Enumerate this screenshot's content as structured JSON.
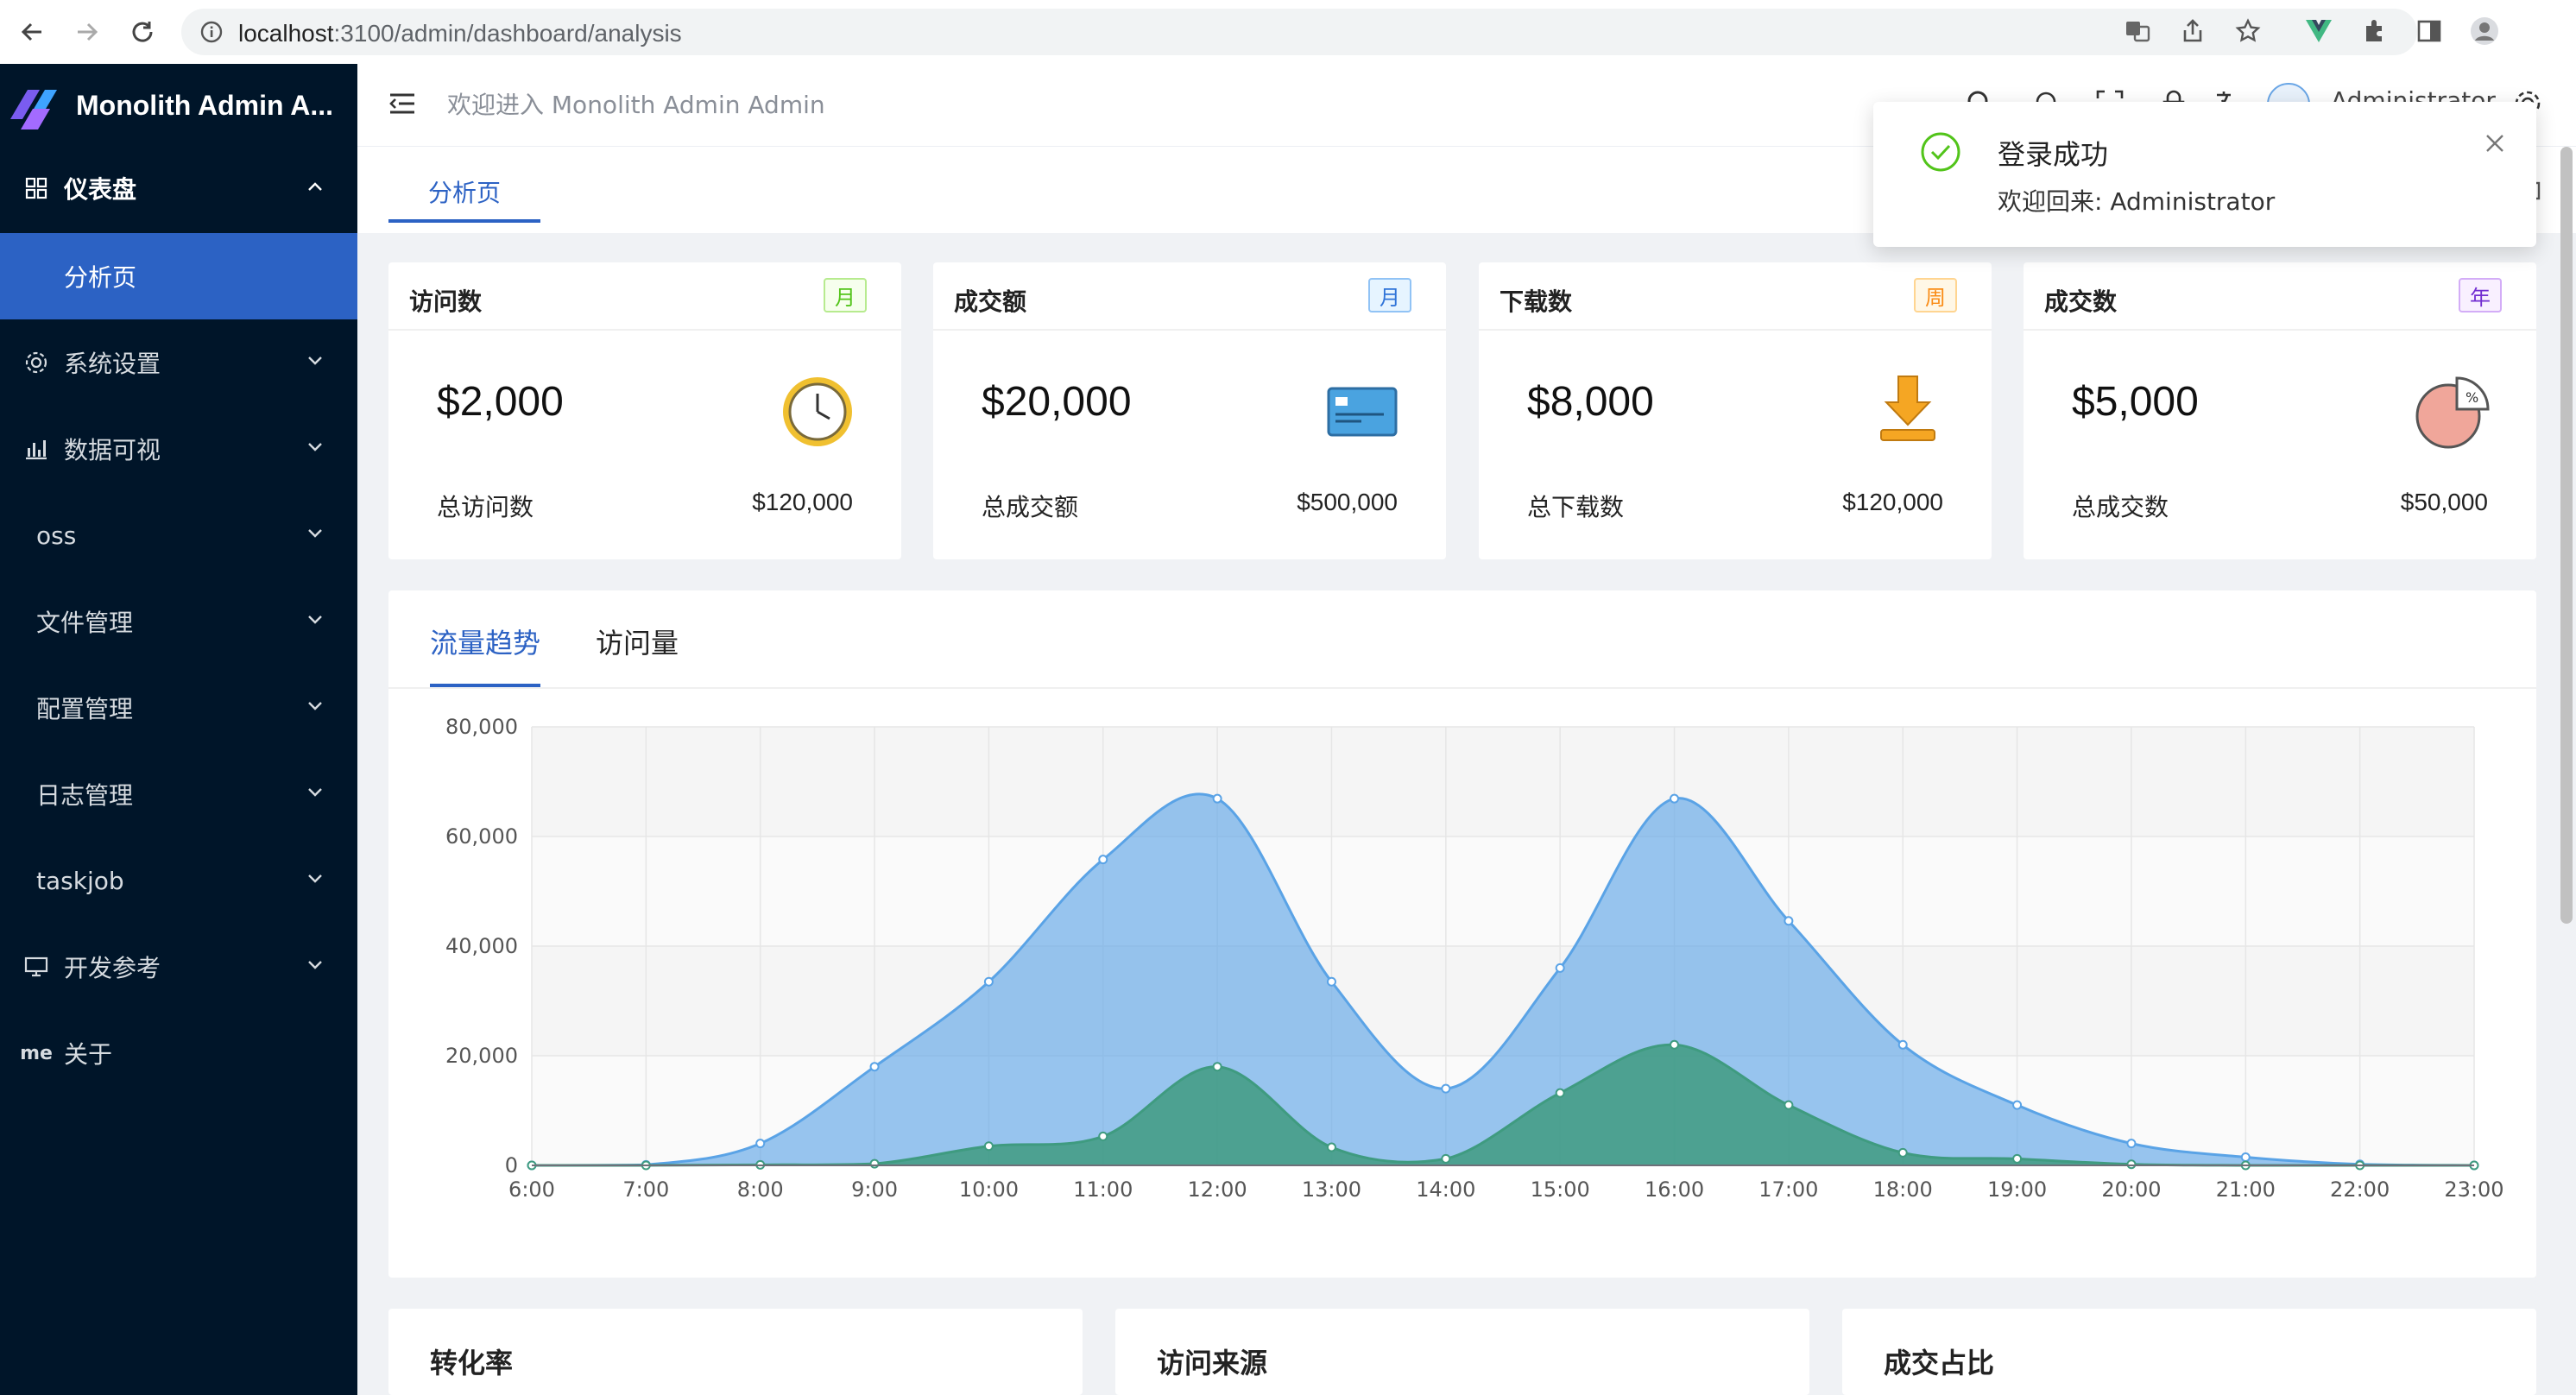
{
  "browser": {
    "url_host": "localhost",
    "url_rest": ":3100/admin/dashboard/analysis"
  },
  "sidebar": {
    "app_title": "Monolith Admin A...",
    "menu": [
      {
        "label": "仪表盘",
        "icon": "dashboard-icon",
        "expanded": true
      },
      {
        "label": "分析页",
        "icon": "",
        "selected": true
      },
      {
        "label": "系统设置",
        "icon": "gear-icon"
      },
      {
        "label": "数据可视",
        "icon": "bar-chart-icon"
      },
      {
        "label": "oss",
        "icon": ""
      },
      {
        "label": "文件管理",
        "icon": ""
      },
      {
        "label": "配置管理",
        "icon": ""
      },
      {
        "label": "日志管理",
        "icon": ""
      },
      {
        "label": "taskjob",
        "icon": ""
      },
      {
        "label": "开发参考",
        "icon": "monitor-icon"
      },
      {
        "label": "关于",
        "icon_text": "me"
      }
    ]
  },
  "header": {
    "welcome": "欢迎进入 Monolith Admin Admin",
    "username": "Administrator"
  },
  "tabs": {
    "active": "分析页"
  },
  "cards": [
    {
      "title": "访问数",
      "badge": "月",
      "badge_color": "#52c41a",
      "value": "$2,000",
      "footer_label": "总访问数",
      "footer_value": "$120,000",
      "icon": "clock-icon"
    },
    {
      "title": "成交额",
      "badge": "月",
      "badge_color": "#2f73d8",
      "value": "$20,000",
      "footer_label": "总成交额",
      "footer_value": "$500,000",
      "icon": "credit-card-icon"
    },
    {
      "title": "下载数",
      "badge": "周",
      "badge_color": "#fa8c16",
      "value": "$8,000",
      "footer_label": "总下载数",
      "footer_value": "$120,000",
      "icon": "download-icon"
    },
    {
      "title": "成交数",
      "badge": "年",
      "badge_color": "#722ed1",
      "value": "$5,000",
      "footer_label": "总成交数",
      "footer_value": "$50,000",
      "icon": "pie-chart-icon"
    }
  ],
  "chart_tabs": [
    "流量趋势",
    "访问量"
  ],
  "chart_data": {
    "type": "area",
    "title": "",
    "xlabel": "",
    "ylabel": "",
    "x": [
      "6:00",
      "7:00",
      "8:00",
      "9:00",
      "10:00",
      "11:00",
      "12:00",
      "13:00",
      "14:00",
      "15:00",
      "16:00",
      "17:00",
      "18:00",
      "19:00",
      "20:00",
      "21:00",
      "22:00",
      "23:00"
    ],
    "ylim": [
      0,
      80000
    ],
    "y_ticks": [
      "0",
      "20,000",
      "40,000",
      "60,000",
      "80,000"
    ],
    "grid": true,
    "series": [
      {
        "values": [
          0,
          100,
          4000,
          18000,
          33500,
          55800,
          66900,
          33500,
          14000,
          36000,
          66900,
          44600,
          22000,
          11000,
          4000,
          1500,
          200,
          0
        ],
        "color": "#5aa3e6"
      },
      {
        "values": [
          0,
          0,
          100,
          300,
          3500,
          5300,
          18000,
          3300,
          1200,
          13200,
          22000,
          11000,
          2300,
          1200,
          200,
          0,
          0,
          0
        ],
        "color": "#3f9b80"
      }
    ]
  },
  "bottom_cards": [
    "转化率",
    "访问来源",
    "成交占比"
  ],
  "notification": {
    "title": "登录成功",
    "message": "欢迎回来: Administrator"
  }
}
